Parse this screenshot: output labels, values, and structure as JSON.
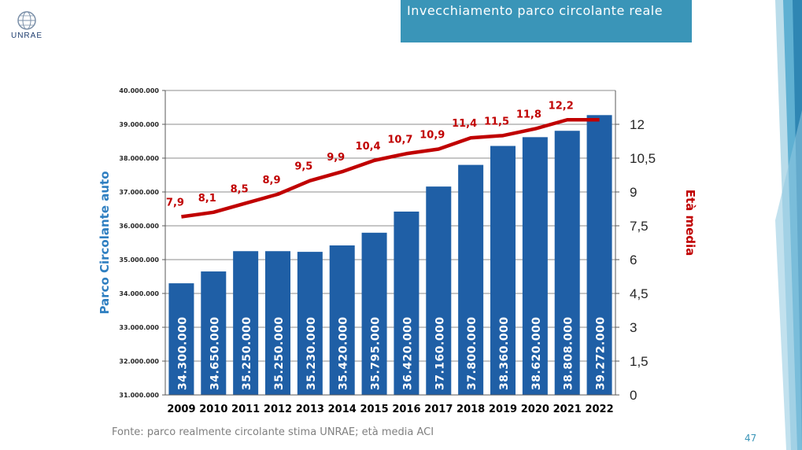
{
  "slide": {
    "title": "Invecchiamento parco circolante reale",
    "logo_text": "UNRAE",
    "source": "Fonte:  parco realmente circolante stima UNRAE; età media ACI",
    "page_number": "47"
  },
  "colors": {
    "title_bg": "#3a95b8",
    "bar": "#1f5fa6",
    "line": "#c00000",
    "left_axis_label": "#2f7fc1",
    "right_axis_label": "#c00000"
  },
  "chart_data": {
    "type": "bar",
    "categories": [
      "2009",
      "2010",
      "2011",
      "2012",
      "2013",
      "2014",
      "2015",
      "2016",
      "2017",
      "2018",
      "2019",
      "2020",
      "2021",
      "2022"
    ],
    "series": [
      {
        "name": "Parco Circolante auto",
        "type": "bar",
        "axis": "left",
        "values": [
          34300000,
          34650000,
          35250000,
          35250000,
          35230000,
          35420000,
          35795000,
          36420000,
          37160000,
          37800000,
          38360000,
          38620000,
          38808000,
          39272000
        ],
        "labels": [
          "34.300.000",
          "34.650.000",
          "35.250.000",
          "35.250.000",
          "35.230.000",
          "35.420.000",
          "35.795.000",
          "36.420.000",
          "37.160.000",
          "37.800.000",
          "38.360.000",
          "38.620.000",
          "38.808.000",
          "39.272.000"
        ]
      },
      {
        "name": "Età media",
        "type": "line",
        "axis": "right",
        "values": [
          7.9,
          8.1,
          8.5,
          8.9,
          9.5,
          9.9,
          10.4,
          10.7,
          10.9,
          11.4,
          11.5,
          11.8,
          12.2,
          12.2
        ],
        "labels": [
          "7,9",
          "8,1",
          "8,5",
          "8,9",
          "9,5",
          "9,9",
          "10,4",
          "10,7",
          "10,9",
          "11,4",
          "11,5",
          "11,8",
          "12,2",
          ""
        ]
      }
    ],
    "ylabel": "Parco Circolante auto",
    "y2label": "Età media",
    "ylim": [
      31000000,
      40000000
    ],
    "y2lim": [
      0,
      13.5
    ],
    "yticks": [
      "31.000.000",
      "32.000.000",
      "33.000.000",
      "34.000.000",
      "35.000.000",
      "36.000.000",
      "37.000.000",
      "38.000.000",
      "39.000.000",
      "40.000.000"
    ],
    "y2ticks": [
      "0",
      "1,5",
      "3",
      "4,5",
      "6",
      "7,5",
      "9",
      "10,5",
      "12"
    ],
    "y2tick_values": [
      0,
      1.5,
      3,
      4.5,
      6,
      7.5,
      9,
      10.5,
      12
    ],
    "grid": true,
    "legend": "none"
  }
}
